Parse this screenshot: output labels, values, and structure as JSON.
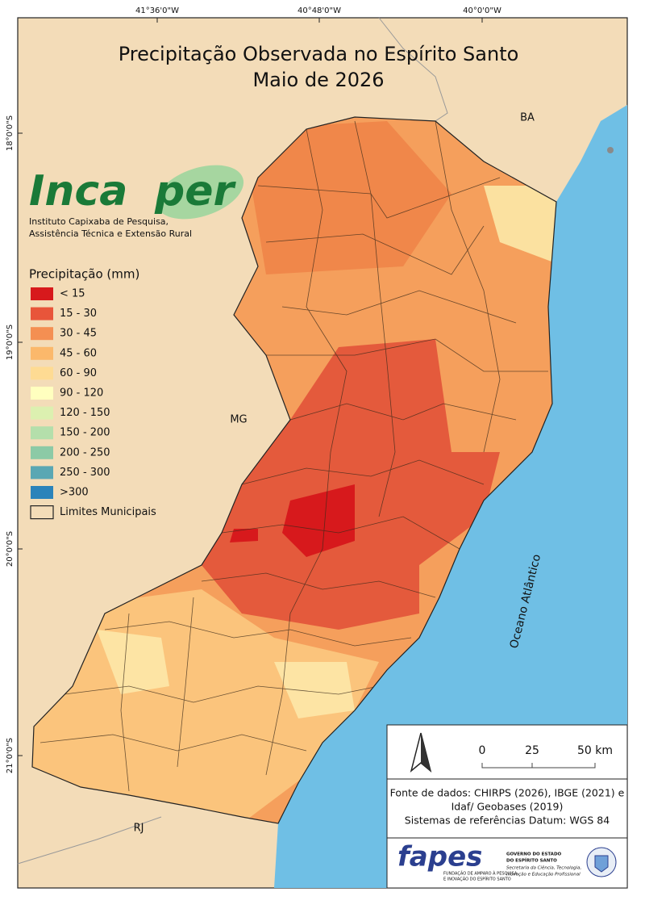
{
  "title": {
    "line1": "Precipitação Observada no Espírito Santo",
    "line2": "Maio de 2026"
  },
  "graticule": {
    "top": [
      "41°36'0\"W",
      "40°48'0\"W",
      "40°0'0\"W"
    ],
    "left": [
      "18°0'0\"S",
      "19°0'0\"S",
      "20°0'0\"S",
      "21°0'0\"S"
    ]
  },
  "places": {
    "ba": "BA",
    "mg": "MG",
    "rj": "RJ",
    "ocean": "Oceano Atlântico"
  },
  "logo": {
    "name_part1": "Inca",
    "name_part2": "per",
    "subtitle_line1": "Instituto Capixaba de Pesquisa,",
    "subtitle_line2": "Assistência Técnica e Extensão Rural"
  },
  "legend": {
    "title": "Precipitação (mm)",
    "items": [
      {
        "label": "< 15",
        "color": "#d7191c"
      },
      {
        "label": "15 - 30",
        "color": "#e8553a"
      },
      {
        "label": "30 - 45",
        "color": "#f48f52"
      },
      {
        "label": "45 - 60",
        "color": "#fbb86b"
      },
      {
        "label": "60 - 90",
        "color": "#fedb93"
      },
      {
        "label": "90 - 120",
        "color": "#ffffbf"
      },
      {
        "label": "120 - 150",
        "color": "#dcf0b0"
      },
      {
        "label": "150 - 200",
        "color": "#b4dfab"
      },
      {
        "label": "200 - 250",
        "color": "#8ccaa6"
      },
      {
        "label": "250 - 300",
        "color": "#5aa7b3"
      },
      {
        "label": ">300",
        "color": "#2b83ba"
      },
      {
        "label": "Limites Municipais"
      }
    ]
  },
  "scale": {
    "ticks": [
      "0",
      "25",
      "50 km"
    ]
  },
  "source": {
    "lines": [
      "Fonte de dados: CHIRPS (2026), IBGE (2021) e",
      "Idaf/ Geobases (2019)",
      "Sistemas de referências Datum: WGS 84"
    ]
  },
  "footer": {
    "fapes": "fapes",
    "fapes_caption1": "FUNDAÇÃO DE AMPARO À PESQUISA",
    "fapes_caption2": "E INOVAÇÃO DO ESPÍRITO SANTO",
    "gov1": "GOVERNO DO ESTADO",
    "gov2": "DO ESPÍRITO SANTO",
    "gov3": "Secretaria da Ciência, Tecnologia,",
    "gov4": "Inovação e Educação Profissional"
  }
}
